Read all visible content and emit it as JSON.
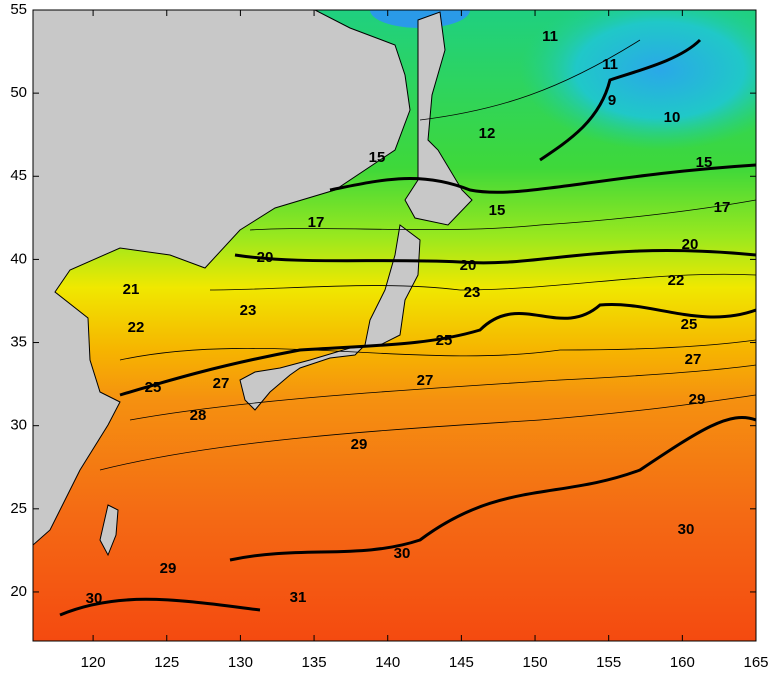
{
  "map": {
    "xlim": [
      115.92,
      165
    ],
    "ylim": [
      17.05,
      55
    ],
    "xticks": [
      120,
      125,
      130,
      135,
      140,
      145,
      150,
      155,
      160,
      165
    ],
    "yticks": [
      20,
      25,
      30,
      35,
      40,
      45,
      50,
      55
    ],
    "contour_labels": [
      11,
      11,
      9,
      10,
      12,
      15,
      15,
      15,
      17,
      17,
      20,
      20,
      20,
      21,
      22,
      22,
      23,
      23,
      25,
      25,
      25,
      27,
      27,
      27,
      28,
      29,
      29,
      29,
      30,
      30,
      30,
      31
    ]
  }
}
